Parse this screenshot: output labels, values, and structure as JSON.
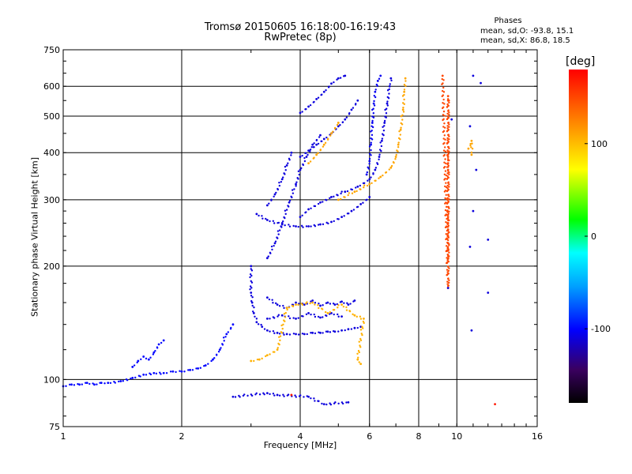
{
  "header": {
    "title_line1": "Tromsø 20150605 16:18:00-16:19:43",
    "title_line2": "RwPretec (8p)",
    "stats_title": "Phases",
    "stats_o": "mean, sd,O: -93.8, 15.1",
    "stats_x": "mean, sd,X:  86.8, 18.5"
  },
  "colorbar": {
    "label": "[deg]",
    "ticks": [
      "100",
      "0",
      "-100"
    ],
    "tick_values": [
      100,
      0,
      -100
    ],
    "range": [
      -180,
      180
    ]
  },
  "chart_data": {
    "type": "scatter",
    "xlabel": "Frequency [MHz]",
    "ylabel": "Stationary phase Virtual Height [km]",
    "x_scale": "log",
    "y_scale": "log",
    "xlim": [
      1,
      16
    ],
    "ylim": [
      75,
      750
    ],
    "x_ticks": [
      "1",
      "2",
      "4",
      "6",
      "8",
      "10",
      "16"
    ],
    "x_tick_values": [
      1,
      2,
      4,
      6,
      8,
      10,
      16
    ],
    "y_ticks": [
      "750",
      "600",
      "500",
      "400",
      "300",
      "200",
      "100",
      "75"
    ],
    "y_tick_values": [
      750,
      600,
      500,
      400,
      300,
      200,
      100,
      75
    ],
    "grid": true,
    "traces": [
      {
        "phase": -100,
        "points": [
          [
            1.0,
            96
          ],
          [
            1.05,
            97
          ],
          [
            1.1,
            97
          ],
          [
            1.15,
            98
          ],
          [
            1.2,
            97
          ],
          [
            1.25,
            98
          ],
          [
            1.3,
            98
          ],
          [
            1.4,
            99
          ],
          [
            1.5,
            101
          ],
          [
            1.6,
            103
          ],
          [
            1.7,
            104
          ],
          [
            1.8,
            104
          ],
          [
            1.9,
            105
          ],
          [
            2.0,
            105
          ],
          [
            2.1,
            106
          ],
          [
            2.2,
            107
          ],
          [
            2.3,
            109
          ],
          [
            2.4,
            113
          ],
          [
            2.5,
            120
          ],
          [
            2.6,
            132
          ],
          [
            2.7,
            140
          ]
        ]
      },
      {
        "phase": -100,
        "points": [
          [
            1.5,
            108
          ],
          [
            1.55,
            112
          ],
          [
            1.6,
            115
          ],
          [
            1.65,
            113
          ],
          [
            1.7,
            118
          ],
          [
            1.75,
            124
          ],
          [
            1.8,
            127
          ]
        ]
      },
      {
        "phase": -110,
        "points": [
          [
            3.0,
            200
          ],
          [
            3.0,
            170
          ],
          [
            3.02,
            160
          ],
          [
            3.05,
            150
          ],
          [
            3.1,
            142
          ],
          [
            3.2,
            138
          ],
          [
            3.3,
            135
          ],
          [
            3.5,
            133
          ],
          [
            3.7,
            132
          ],
          [
            3.9,
            132
          ],
          [
            4.1,
            132
          ],
          [
            4.3,
            133
          ],
          [
            4.5,
            133
          ],
          [
            4.7,
            134
          ],
          [
            4.9,
            134
          ],
          [
            5.1,
            135
          ],
          [
            5.3,
            136
          ],
          [
            5.5,
            137
          ],
          [
            5.7,
            138
          ]
        ]
      },
      {
        "phase": -110,
        "points": [
          [
            3.3,
            165
          ],
          [
            3.5,
            158
          ],
          [
            3.7,
            155
          ],
          [
            3.9,
            160
          ],
          [
            4.1,
            158
          ],
          [
            4.3,
            162
          ],
          [
            4.5,
            157
          ],
          [
            4.7,
            160
          ],
          [
            4.9,
            158
          ],
          [
            5.1,
            161
          ],
          [
            5.3,
            158
          ],
          [
            5.5,
            162
          ]
        ]
      },
      {
        "phase": -110,
        "points": [
          [
            3.3,
            145
          ],
          [
            3.6,
            148
          ],
          [
            3.9,
            145
          ],
          [
            4.2,
            150
          ],
          [
            4.5,
            146
          ],
          [
            4.8,
            150
          ],
          [
            5.1,
            147
          ]
        ]
      },
      {
        "phase": -110,
        "points": [
          [
            3.1,
            275
          ],
          [
            3.3,
            265
          ],
          [
            3.6,
            258
          ],
          [
            3.9,
            255
          ],
          [
            4.2,
            255
          ],
          [
            4.5,
            258
          ],
          [
            4.8,
            262
          ],
          [
            5.1,
            270
          ],
          [
            5.4,
            280
          ],
          [
            5.7,
            292
          ],
          [
            6.0,
            305
          ]
        ]
      },
      {
        "phase": -110,
        "points": [
          [
            3.3,
            210
          ],
          [
            3.45,
            230
          ],
          [
            3.6,
            260
          ],
          [
            3.75,
            295
          ],
          [
            3.9,
            330
          ],
          [
            4.0,
            360
          ],
          [
            4.15,
            390
          ],
          [
            4.3,
            420
          ],
          [
            4.5,
            445
          ]
        ]
      },
      {
        "phase": -110,
        "points": [
          [
            4.0,
            270
          ],
          [
            4.2,
            283
          ],
          [
            4.5,
            295
          ],
          [
            4.8,
            305
          ],
          [
            5.2,
            315
          ],
          [
            5.6,
            325
          ],
          [
            6.0,
            340
          ],
          [
            6.2,
            360
          ],
          [
            6.35,
            390
          ],
          [
            6.45,
            430
          ],
          [
            6.55,
            480
          ],
          [
            6.65,
            540
          ],
          [
            6.75,
            600
          ],
          [
            6.8,
            630
          ]
        ]
      },
      {
        "phase": -110,
        "points": [
          [
            4.0,
            390
          ],
          [
            4.2,
            405
          ],
          [
            4.4,
            420
          ],
          [
            4.6,
            435
          ],
          [
            4.8,
            450
          ],
          [
            5.0,
            470
          ],
          [
            5.2,
            490
          ],
          [
            5.4,
            520
          ],
          [
            5.6,
            550
          ]
        ]
      },
      {
        "phase": -110,
        "points": [
          [
            4.0,
            510
          ],
          [
            4.2,
            530
          ],
          [
            4.4,
            555
          ],
          [
            4.6,
            580
          ],
          [
            4.8,
            610
          ],
          [
            5.0,
            630
          ],
          [
            5.2,
            640
          ]
        ]
      },
      {
        "phase": -105,
        "points": [
          [
            5.9,
            350
          ],
          [
            6.0,
            380
          ],
          [
            6.05,
            420
          ],
          [
            6.1,
            480
          ],
          [
            6.15,
            540
          ],
          [
            6.2,
            580
          ],
          [
            6.3,
            620
          ],
          [
            6.4,
            640
          ]
        ]
      },
      {
        "phase": -110,
        "points": [
          [
            3.3,
            290
          ],
          [
            3.45,
            310
          ],
          [
            3.6,
            340
          ],
          [
            3.7,
            370
          ],
          [
            3.8,
            400
          ]
        ]
      },
      {
        "phase": 110,
        "points": [
          [
            5.0,
            300
          ],
          [
            5.5,
            315
          ],
          [
            6.0,
            330
          ],
          [
            6.4,
            345
          ],
          [
            6.8,
            365
          ],
          [
            7.0,
            390
          ],
          [
            7.1,
            420
          ],
          [
            7.2,
            460
          ],
          [
            7.3,
            520
          ],
          [
            7.35,
            580
          ],
          [
            7.4,
            630
          ]
        ]
      },
      {
        "phase": 110,
        "points": [
          [
            4.2,
            375
          ],
          [
            4.4,
            395
          ],
          [
            4.6,
            420
          ],
          [
            4.8,
            450
          ],
          [
            5.0,
            480
          ]
        ]
      },
      {
        "phase": 105,
        "points": [
          [
            3.0,
            112
          ],
          [
            3.15,
            113
          ],
          [
            3.3,
            116
          ],
          [
            3.5,
            120
          ],
          [
            3.7,
            155
          ],
          [
            3.9,
            158
          ],
          [
            4.3,
            160
          ],
          [
            4.7,
            150
          ],
          [
            5.1,
            158
          ],
          [
            5.5,
            148
          ],
          [
            5.8,
            145
          ],
          [
            5.6,
            113
          ],
          [
            5.7,
            110
          ]
        ]
      },
      {
        "phase": 150,
        "points": [
          [
            9.5,
            210
          ],
          [
            9.5,
            220
          ],
          [
            9.5,
            230
          ],
          [
            9.5,
            240
          ],
          [
            9.5,
            250
          ],
          [
            9.5,
            260
          ],
          [
            9.5,
            270
          ],
          [
            9.5,
            360
          ],
          [
            9.5,
            375
          ],
          [
            9.5,
            390
          ],
          [
            9.5,
            550
          ],
          [
            9.5,
            565
          ],
          [
            9.5,
            175
          ],
          [
            9.2,
            640
          ]
        ]
      },
      {
        "phase": -110,
        "points": [
          [
            9.5,
            175
          ],
          [
            9.7,
            490
          ],
          [
            11.0,
            280
          ],
          [
            11.0,
            640
          ],
          [
            11.2,
            360
          ],
          [
            11.5,
            612
          ],
          [
            12.0,
            235
          ],
          [
            12.0,
            170
          ],
          [
            10.8,
            470
          ],
          [
            10.8,
            225
          ],
          [
            10.9,
            135
          ]
        ]
      },
      {
        "phase": 110,
        "points": [
          [
            10.9,
            395
          ],
          [
            10.9,
            430
          ],
          [
            10.7,
            410
          ]
        ]
      },
      {
        "phase": -110,
        "points": [
          [
            2.7,
            90
          ],
          [
            3.3,
            92
          ],
          [
            3.5,
            91
          ],
          [
            4.2,
            90
          ],
          [
            4.6,
            86
          ],
          [
            5.3,
            87
          ]
        ]
      },
      {
        "phase": 170,
        "points": [
          [
            3.8,
            91
          ],
          [
            12.5,
            86
          ]
        ]
      }
    ]
  }
}
